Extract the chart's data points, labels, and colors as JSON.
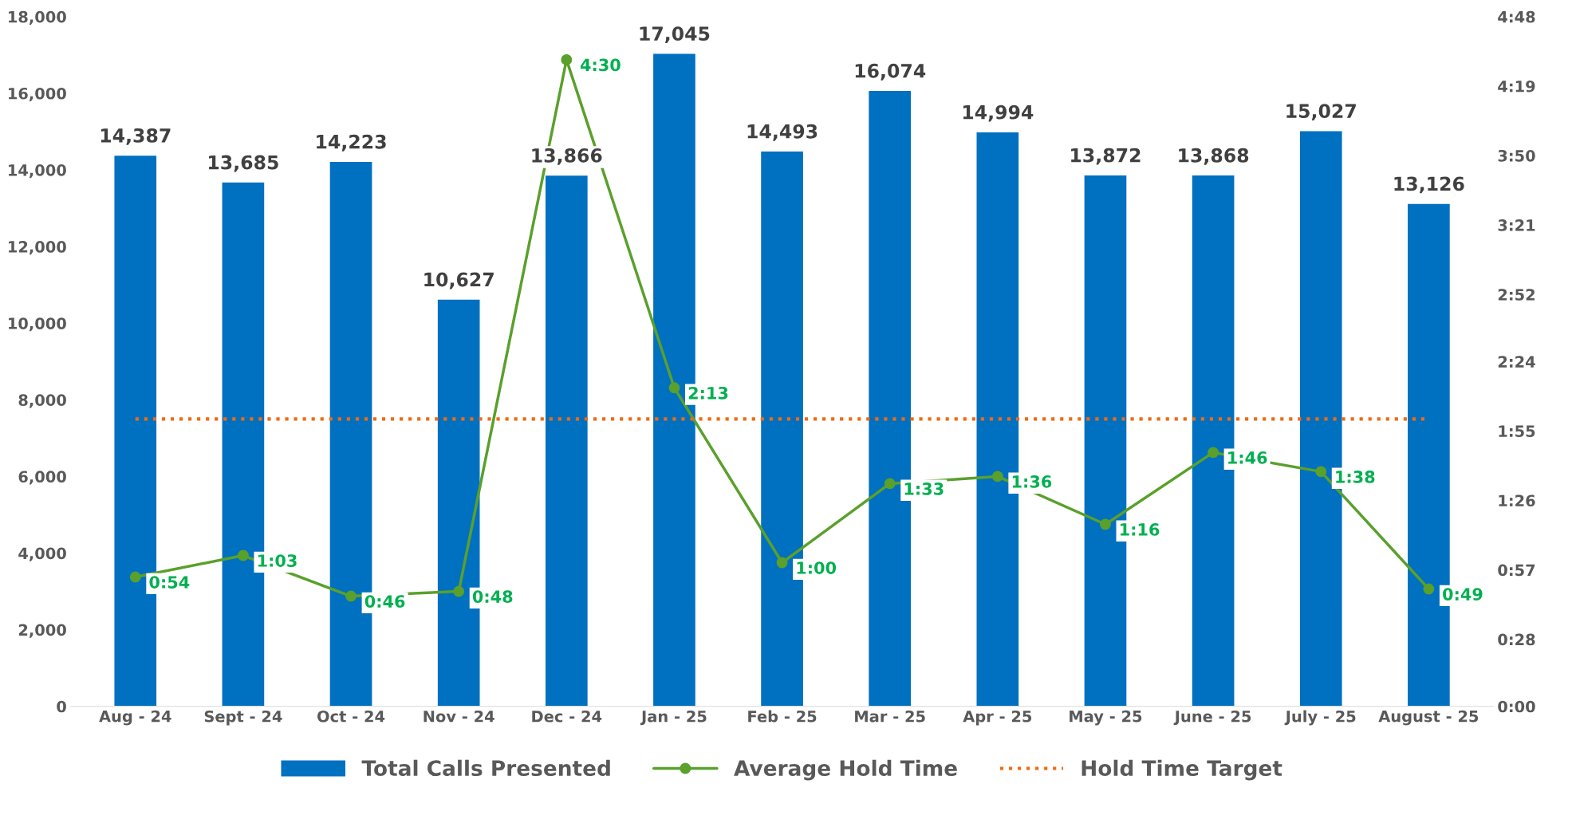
{
  "chart_data": {
    "type": "bar",
    "categories": [
      "Aug - 24",
      "Sept - 24",
      "Oct - 24",
      "Nov - 24",
      "Dec - 24",
      "Jan - 25",
      "Feb - 25",
      "Mar - 25",
      "Apr - 25",
      "May - 25",
      "June - 25",
      "July - 25",
      "August - 25"
    ],
    "series": [
      {
        "name": "Total Calls Presented",
        "color": "#0070c0",
        "values": [
          14387,
          13685,
          14223,
          10627,
          13866,
          17045,
          14493,
          16074,
          14994,
          13872,
          13868,
          15027,
          13126
        ],
        "value_labels": [
          "14,387",
          "13,685",
          "14,223",
          "10,627",
          "13,866",
          "17,045",
          "14,493",
          "16,074",
          "14,994",
          "13,872",
          "13,868",
          "15,027",
          "13,126"
        ]
      },
      {
        "name": "Average Hold Time",
        "type": "line",
        "axis": "y2",
        "color": "#5aa02c",
        "marker": "circle",
        "values": [
          54,
          63,
          46,
          48,
          270,
          133,
          60,
          93,
          96,
          76,
          106,
          98,
          49
        ],
        "value_labels": [
          "0:54",
          "1:03",
          "0:46",
          "0:48",
          "4:30",
          "2:13",
          "1:00",
          "1:33",
          "1:36",
          "1:16",
          "1:46",
          "1:38",
          "0:49"
        ]
      }
    ],
    "ylim": [
      0,
      18000
    ],
    "yticks": [
      0,
      {
        "value": 2000,
        "label": "2,000"
      },
      {
        "value": 4000,
        "label": "4,000"
      },
      {
        "value": 6000,
        "label": "6,000"
      },
      {
        "value": 8000,
        "label": "8,000"
      },
      {
        "value": 10000,
        "label": "10,000"
      },
      {
        "value": 12000,
        "label": "12,000"
      },
      {
        "value": 14000,
        "label": "14,000"
      },
      {
        "value": 16000,
        "label": "16,000"
      },
      {
        "value": 18000,
        "label": "18,000"
      }
    ],
    "y2lim": [
      0,
      288
    ],
    "y2ticks": [
      {
        "value": 0,
        "label": "0:00"
      },
      {
        "value": 28,
        "label": "0:28"
      },
      {
        "value": 57,
        "label": "0:57"
      },
      {
        "value": 86,
        "label": "1:26"
      },
      {
        "value": 115,
        "label": "1:55"
      },
      {
        "value": 144,
        "label": "2:24"
      },
      {
        "value": 172,
        "label": "2:52"
      },
      {
        "value": 201,
        "label": "3:21"
      },
      {
        "value": 230,
        "label": "3:50"
      },
      {
        "value": 259,
        "label": "4:19"
      },
      {
        "value": 288,
        "label": "4:48"
      }
    ],
    "ref_lines": [
      {
        "axis": "y2",
        "value": 120,
        "label": "Hold Time Target",
        "color": "#f06a10",
        "line_style": "dotted"
      }
    ],
    "legend": "bottom",
    "grid": false
  }
}
